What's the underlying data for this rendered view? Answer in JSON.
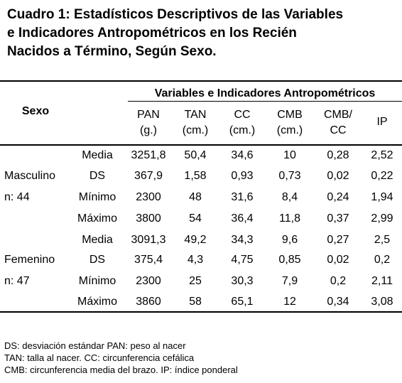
{
  "title": {
    "lines": [
      "Cuadro 1: Estadísticos Descriptivos de las Variables",
      "e Indicadores Antropométricos en los Recién",
      "Nacidos a Término, Según Sexo."
    ]
  },
  "table": {
    "sexo_header": "Sexo",
    "group_header": "Variables e Indicadores Antropométricos",
    "columns": [
      {
        "line1": "PAN",
        "line2": "(g.)"
      },
      {
        "line1": "TAN",
        "line2": "(cm.)"
      },
      {
        "line1": "CC",
        "line2": "(cm.)"
      },
      {
        "line1": "CMB",
        "line2": "(cm.)"
      },
      {
        "line1": "CMB/",
        "line2": "CC"
      },
      {
        "line1": "IP",
        "line2": ""
      }
    ],
    "groups": [
      {
        "sex": "Masculino",
        "n": "n: 44",
        "rows": [
          {
            "stat": "Media",
            "values": [
              "3251,8",
              "50,4",
              "34,6",
              "10",
              "0,28",
              "2,52"
            ]
          },
          {
            "stat": "DS",
            "values": [
              "367,9",
              "1,58",
              "0,93",
              "0,73",
              "0,02",
              "0,22"
            ]
          },
          {
            "stat": "Mínimo",
            "values": [
              "2300",
              "48",
              "31,6",
              "8,4",
              "0,24",
              "1,94"
            ]
          },
          {
            "stat": "Máximo",
            "values": [
              "3800",
              "54",
              "36,4",
              "11,8",
              "0,37",
              "2,99"
            ]
          }
        ]
      },
      {
        "sex": "Femenino",
        "n": "n: 47",
        "rows": [
          {
            "stat": "Media",
            "values": [
              "3091,3",
              "49,2",
              "34,3",
              "9,6",
              "0,27",
              "2,5"
            ]
          },
          {
            "stat": "DS",
            "values": [
              "375,4",
              "4,3",
              "4,75",
              "0,85",
              "0,02",
              "0,2"
            ]
          },
          {
            "stat": "Mínimo",
            "values": [
              "2300",
              "25",
              "30,3",
              "7,9",
              "0,2",
              "2,11"
            ]
          },
          {
            "stat": "Máximo",
            "values": [
              "3860",
              "58",
              "65,1",
              "12",
              "0,34",
              "3,08"
            ]
          }
        ]
      }
    ]
  },
  "footnotes": [
    "DS: desviación estándar   PAN: peso al nacer",
    "TAN: talla al nacer. CC: circunferencia cefálica",
    "CMB: circunferencia media del brazo. IP: índice ponderal"
  ]
}
